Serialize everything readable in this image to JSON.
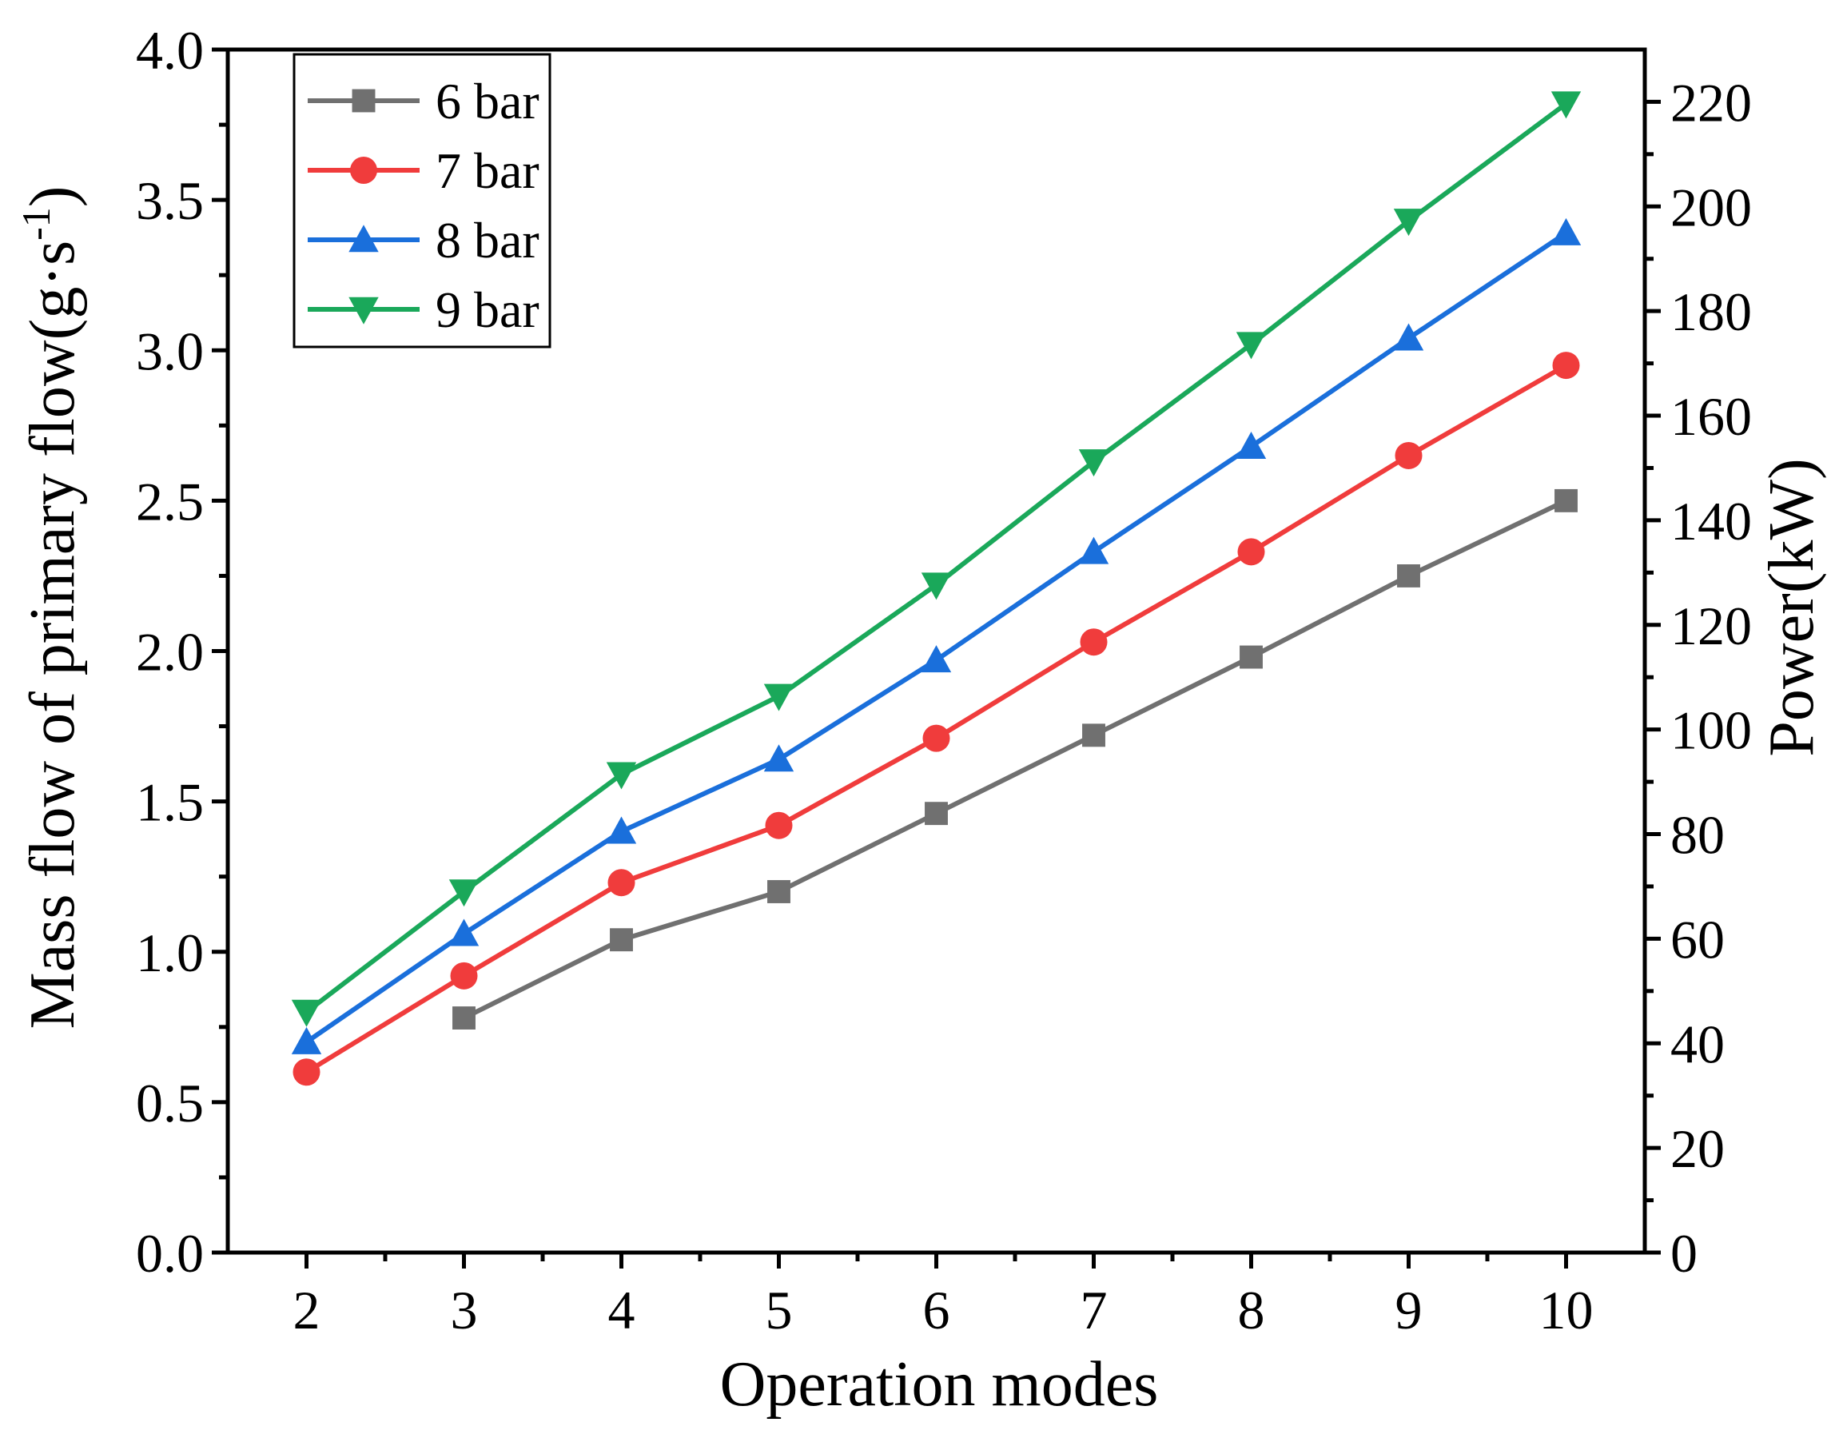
{
  "chart_data": {
    "type": "line",
    "title": "",
    "xlabel": "Operation modes",
    "ylabel": "Mass flow of primary flow(g·s",
    "ylabel_sup": "-1",
    "ylabel_close": ")",
    "ylabel_full": "Mass flow of primary flow(g·s-1)",
    "y2label": "Power(kW)",
    "xlim": [
      1.5,
      10.5
    ],
    "ylim": [
      0,
      4
    ],
    "y2lim": [
      0,
      230
    ],
    "x_ticks": [
      2,
      3,
      4,
      5,
      6,
      7,
      8,
      9,
      10
    ],
    "x_tick_labels": [
      "2",
      "3",
      "4",
      "5",
      "6",
      "7",
      "8",
      "9",
      "10"
    ],
    "y_ticks": [
      0,
      0.5,
      1,
      1.5,
      2,
      2.5,
      3,
      3.5,
      4
    ],
    "y_tick_labels": [
      "0.0",
      "0.5",
      "1.0",
      "1.5",
      "2.0",
      "2.5",
      "3.0",
      "3.5",
      "4.0"
    ],
    "y2_ticks": [
      0,
      20,
      40,
      60,
      80,
      100,
      120,
      140,
      160,
      180,
      200,
      220
    ],
    "y2_tick_labels": [
      "0",
      "20",
      "40",
      "60",
      "80",
      "100",
      "120",
      "140",
      "160",
      "180",
      "200",
      "220"
    ],
    "grid": false,
    "legend_position": "top-left",
    "series": [
      {
        "name": "6 bar",
        "color": "#707070",
        "marker": "square",
        "x": [
          3,
          4,
          5,
          6,
          7,
          8,
          9,
          10
        ],
        "values": [
          0.78,
          1.04,
          1.2,
          1.46,
          1.72,
          1.98,
          2.25,
          2.5
        ]
      },
      {
        "name": "7 bar",
        "color": "#f03c3c",
        "marker": "circle",
        "x": [
          2,
          3,
          4,
          5,
          6,
          7,
          8,
          9,
          10
        ],
        "values": [
          0.6,
          0.92,
          1.23,
          1.42,
          1.71,
          2.03,
          2.33,
          2.65,
          2.95
        ]
      },
      {
        "name": "8 bar",
        "color": "#1a6fdb",
        "marker": "triangle-up",
        "x": [
          2,
          3,
          4,
          5,
          6,
          7,
          8,
          9,
          10
        ],
        "values": [
          0.7,
          1.06,
          1.4,
          1.64,
          1.97,
          2.33,
          2.68,
          3.04,
          3.39
        ]
      },
      {
        "name": "9 bar",
        "color": "#1aa85a",
        "marker": "triangle-down",
        "x": [
          2,
          3,
          4,
          5,
          6,
          7,
          8,
          9,
          10
        ],
        "values": [
          0.8,
          1.2,
          1.59,
          1.85,
          2.22,
          2.63,
          3.02,
          3.43,
          3.82
        ]
      }
    ]
  }
}
